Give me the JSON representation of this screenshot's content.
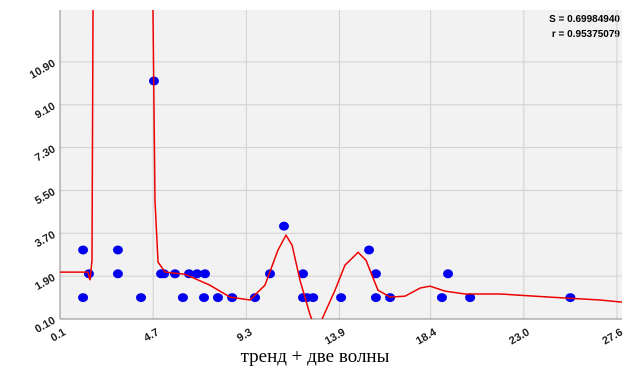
{
  "chart_data": {
    "type": "scatter",
    "caption": "тренд + две волны",
    "annotations": [
      "S = 0.69984940",
      "r = 0.95375079"
    ],
    "xlim": [
      0.1,
      27.85
    ],
    "ylim": [
      0.1,
      13.08
    ],
    "xticks": [
      0.1,
      4.7,
      9.3,
      13.9,
      18.4,
      {
        "value": 23,
        "label": "23.0"
      },
      27.6
    ],
    "yticks": [
      {
        "value": 0.1,
        "label": "0.10"
      },
      {
        "value": 1.9,
        "label": "1.90"
      },
      {
        "value": 3.7,
        "label": "3.70"
      },
      {
        "value": 5.5,
        "label": "5.50"
      },
      {
        "value": 7.3,
        "label": "7.30"
      },
      {
        "value": 9.1,
        "label": "9.10"
      },
      {
        "value": 10.9,
        "label": "10.90"
      }
    ],
    "grid": true,
    "series": [
      {
        "type": "scatter",
        "color": "#0000ee",
        "x": [
          1.24,
          1.24,
          1.53,
          2.96,
          2.96,
          4.1,
          4.74,
          5.09,
          5.24,
          5.78,
          6.17,
          6.47,
          6.87,
          7.26,
          7.21,
          7.9,
          8.6,
          9.73,
          10.47,
          11.16,
          12.1,
          12.1,
          12.3,
          12.6,
          13.98,
          15.36,
          15.7,
          15.7,
          16.4,
          18.96,
          19.26,
          20.35,
          25.3
        ],
        "values": [
          3.0,
          1.0,
          2.0,
          3.0,
          2.0,
          1.0,
          10.1,
          2.0,
          2.0,
          2.0,
          1.0,
          2.0,
          2.0,
          2.0,
          1.0,
          1.0,
          1.0,
          1.0,
          2.0,
          4.0,
          2.0,
          1.0,
          1.0,
          1.0,
          1.0,
          3.0,
          2.0,
          1.0,
          1.0,
          1.0,
          2.0,
          1.0,
          1.0
        ]
      },
      {
        "type": "line",
        "color": "#ee0000",
        "x": [
          0.1,
          1.48,
          1.58,
          1.68,
          1.73,
          3.2,
          4.69,
          4.79,
          4.94,
          5.29,
          6.27,
          7.5,
          8.5,
          9.48,
          10.22,
          10.86,
          11.26,
          11.56,
          11.95,
          12.45,
          12.75,
          13.04,
          13.68,
          14.17,
          14.82,
          15.21,
          15.8,
          16.4,
          17.14,
          17.88,
          18.37,
          19.11,
          20.1,
          21.83,
          24.3,
          26.77,
          27.85
        ],
        "values": [
          2.07,
          2.07,
          1.73,
          2.57,
          13.08,
          null,
          13.08,
          5.08,
          2.49,
          2.07,
          1.98,
          1.52,
          1.02,
          0.9,
          1.52,
          2.99,
          3.62,
          3.2,
          1.73,
          0.27,
          -0.4,
          0.1,
          1.31,
          2.36,
          2.9,
          2.57,
          1.31,
          1.02,
          1.06,
          1.4,
          1.48,
          1.27,
          1.15,
          1.15,
          1.02,
          0.9,
          0.81
        ]
      }
    ]
  }
}
